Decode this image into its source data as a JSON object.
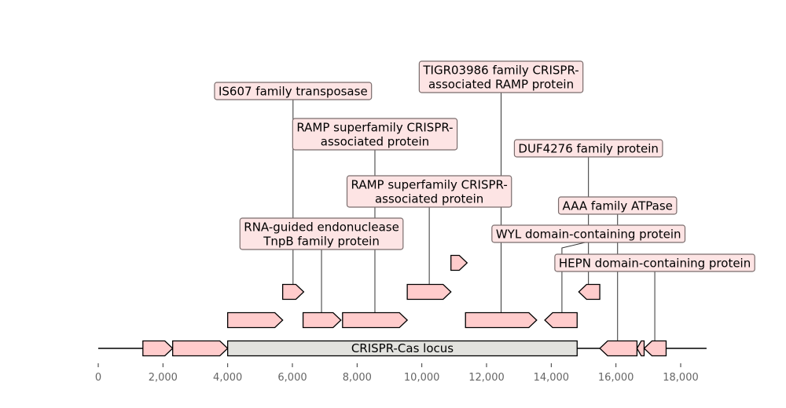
{
  "axis": {
    "min": 0,
    "max": 18000,
    "ticks": [
      0,
      2000,
      4000,
      6000,
      8000,
      10000,
      12000,
      14000,
      16000,
      18000
    ],
    "tick_labels": [
      "0",
      "2,000",
      "4,000",
      "6,000",
      "8,000",
      "10,000",
      "12,000",
      "14,000",
      "16,000",
      "18,000"
    ]
  },
  "sequence": {
    "start": 0,
    "end": 18800
  },
  "locus": {
    "label": "CRISPR-Cas locus",
    "start": 4000,
    "end": 14800
  },
  "genes": [
    {
      "start": 1380,
      "end": 2300,
      "strand": 1,
      "level": 0
    },
    {
      "start": 2300,
      "end": 4000,
      "strand": 1,
      "level": 0
    },
    {
      "start": 15500,
      "end": 16650,
      "strand": -1,
      "level": 0
    },
    {
      "start": 16650,
      "end": 16870,
      "strand": -1,
      "level": 0
    },
    {
      "start": 16870,
      "end": 17550,
      "strand": -1,
      "level": 0
    },
    {
      "start": 4000,
      "end": 5700,
      "strand": 1,
      "level": 1
    },
    {
      "start": 6330,
      "end": 7500,
      "strand": 1,
      "level": 1
    },
    {
      "start": 7550,
      "end": 9550,
      "strand": 1,
      "level": 1
    },
    {
      "start": 11350,
      "end": 13550,
      "strand": 1,
      "level": 1
    },
    {
      "start": 13800,
      "end": 14800,
      "strand": -1,
      "level": 1
    },
    {
      "start": 5700,
      "end": 6350,
      "strand": 1,
      "level": 2
    },
    {
      "start": 9550,
      "end": 10900,
      "strand": 1,
      "level": 2
    },
    {
      "start": 14850,
      "end": 15500,
      "strand": -1,
      "level": 2
    },
    {
      "start": 10900,
      "end": 11400,
      "strand": 1,
      "level": 3
    }
  ],
  "annotations": [
    {
      "lines": [
        "IS607 family transposase"
      ],
      "target": 6020,
      "label_at": 6020,
      "level": 6
    },
    {
      "lines": [
        "TIGR03986 family CRISPR-",
        "associated RAMP protein"
      ],
      "target": 12450,
      "label_at": 12450,
      "level": 7
    },
    {
      "lines": [
        "RAMP superfamily CRISPR-",
        "associated protein"
      ],
      "target": 8550,
      "label_at": 8550,
      "level": 5
    },
    {
      "lines": [
        "DUF4276 family protein"
      ],
      "target": 15150,
      "label_at": 15150,
      "level": 4
    },
    {
      "lines": [
        "RAMP superfamily CRISPR-",
        "associated protein"
      ],
      "target": 10230,
      "label_at": 10230,
      "level": 3
    },
    {
      "lines": [
        "AAA family ATPase"
      ],
      "target": 16050,
      "label_at": 16050,
      "level": 2
    },
    {
      "lines": [
        "WYL domain-containing protein"
      ],
      "target": 14330,
      "label_at": 15150,
      "level": 1
    },
    {
      "lines": [
        "RNA-guided endonuclease",
        "TnpB family protein"
      ],
      "target": 6900,
      "label_at": 6900,
      "level": 1
    },
    {
      "lines": [
        "HEPN domain-containing protein"
      ],
      "target": 17200,
      "label_at": 17200,
      "level": 0
    }
  ]
}
